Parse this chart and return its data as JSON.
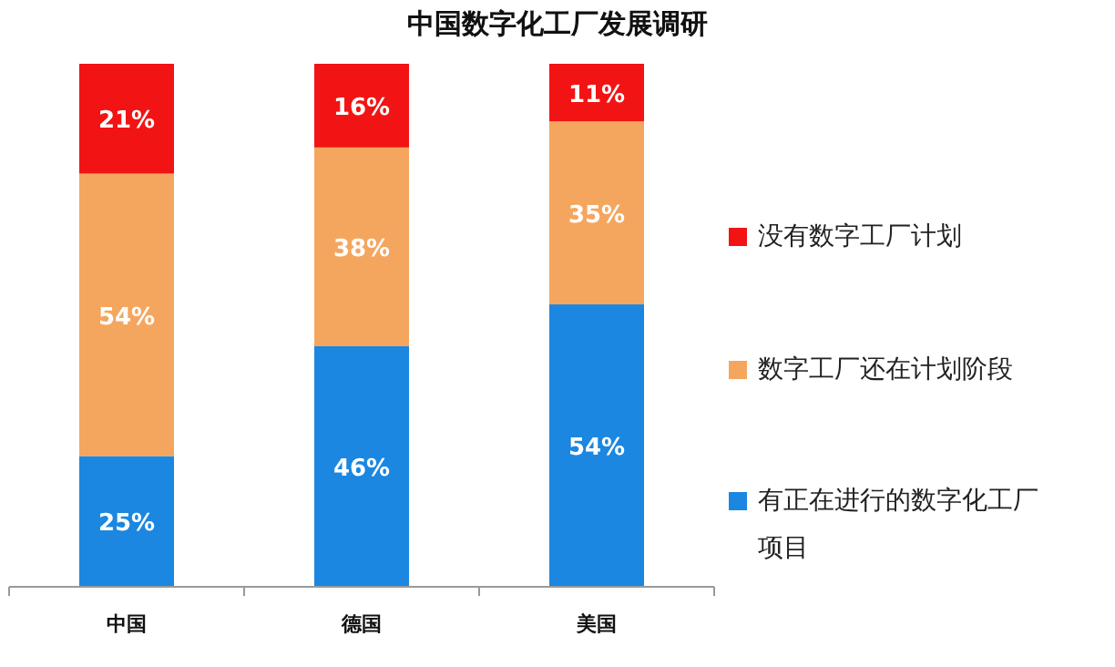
{
  "chart_data": {
    "type": "bar",
    "title": "中国数字化工厂发展调研",
    "stacked": true,
    "legend": "right",
    "tick_labels": "x",
    "categories": [
      "中国",
      "德国",
      "美国"
    ],
    "series": [
      {
        "name": "有正在进行的数字化工厂项目",
        "color": "#1b87e0",
        "values": [
          25,
          46,
          54
        ],
        "value_labels": [
          "25%",
          "46%",
          "54%"
        ]
      },
      {
        "name": "数字工厂还在计划阶段",
        "color": "#f5a65e",
        "values": [
          54,
          38,
          35
        ],
        "value_labels": [
          "54%",
          "38%",
          "35%"
        ]
      },
      {
        "name": "没有数字工厂计划",
        "color": "#f21414",
        "values": [
          21,
          16,
          11
        ],
        "value_labels": [
          "21%",
          "16%",
          "11%"
        ]
      }
    ]
  }
}
